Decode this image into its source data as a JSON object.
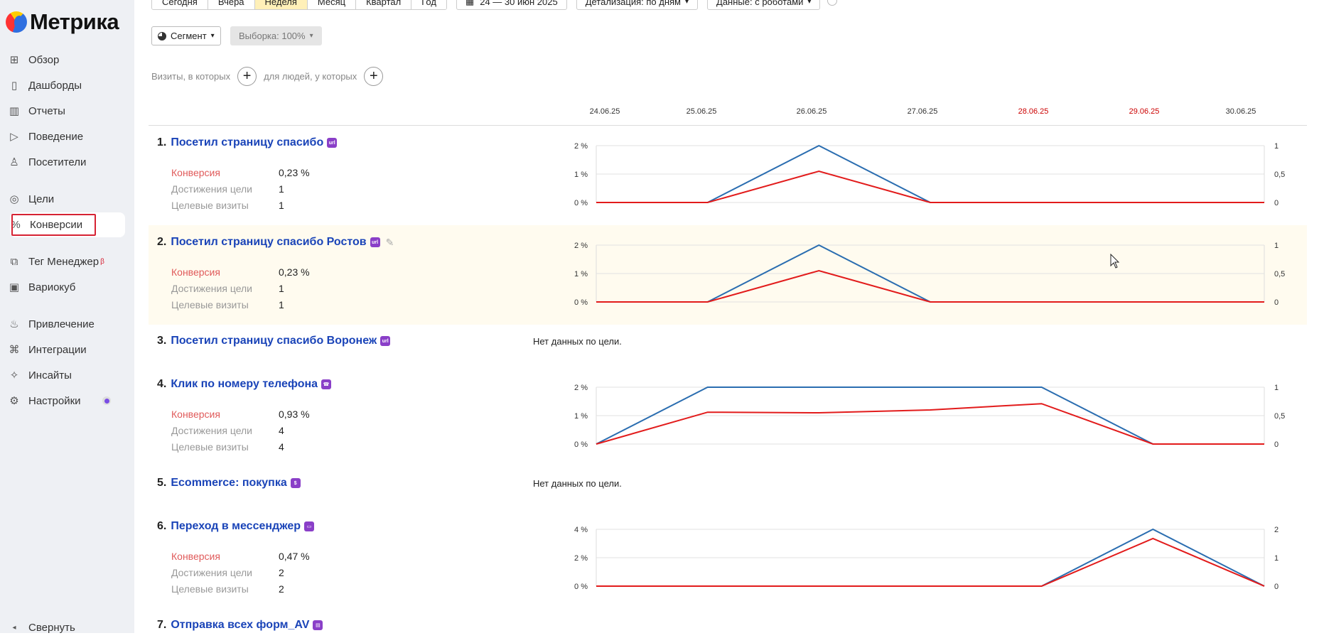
{
  "app": {
    "logo_text": "Метрика"
  },
  "sidebar": {
    "items": [
      {
        "label": "Обзор",
        "icon": "grid-icon"
      },
      {
        "label": "Дашборды",
        "icon": "dashboard-icon"
      },
      {
        "label": "Отчеты",
        "icon": "bar-chart-icon"
      },
      {
        "label": "Поведение",
        "icon": "play-icon"
      },
      {
        "label": "Посетители",
        "icon": "user-icon"
      },
      {
        "label": "Цели",
        "icon": "target-icon"
      },
      {
        "label": "Конверсии",
        "icon": "percent-icon",
        "active": true
      },
      {
        "label": "Тег Менеджер",
        "icon": "tag-manager-icon",
        "badge": "β"
      },
      {
        "label": "Вариокуб",
        "icon": "cube-icon"
      },
      {
        "label": "Привлечение",
        "icon": "flame-icon"
      },
      {
        "label": "Интеграции",
        "icon": "puzzle-icon"
      },
      {
        "label": "Инсайты",
        "icon": "sparkle-icon"
      },
      {
        "label": "Настройки",
        "icon": "gear-icon"
      }
    ],
    "collapse_label": "Свернуть"
  },
  "toolbar": {
    "periods": [
      "Сегодня",
      "Вчера",
      "Неделя",
      "Месяц",
      "Квартал",
      "Год"
    ],
    "selected_period": "Неделя",
    "date_range": "24 — 30 июн 2025",
    "detail": "Детализация: по дням",
    "data_mode": "Данные: с роботами",
    "segment_label": "Сегмент",
    "sample_label": "Выборка: 100%"
  },
  "filters": {
    "visits_label": "Визиты, в которых",
    "people_label": "для людей, у которых"
  },
  "dates": [
    "24.06.25",
    "25.06.25",
    "26.06.25",
    "27.06.25",
    "28.06.25",
    "29.06.25",
    "30.06.25"
  ],
  "weekend_dates": [
    "28.06.25",
    "29.06.25"
  ],
  "labels": {
    "conversion": "Конверсия",
    "achievements": "Достижения цели",
    "target_visits": "Целевые визиты",
    "no_data": "Нет данных по цели."
  },
  "colors": {
    "conversion_line": "#e21b1b",
    "visits_line": "#2a6db0",
    "link": "#1a44b8",
    "goal_icon": "#8a3fc8"
  },
  "goals": [
    {
      "num": "1.",
      "title": "Посетил страницу спасибо",
      "icon": "url-icon",
      "conversion": "0,23 %",
      "achievements": "1",
      "visits": "1",
      "chart": {
        "left_ticks": [
          "2 %",
          "1 %",
          "0 %"
        ],
        "right_ticks": [
          "1",
          "0,5",
          "0"
        ],
        "left_max": 2,
        "right_max": 1,
        "conversion_pct": [
          0,
          0,
          1.1,
          0,
          0,
          0,
          0
        ],
        "target_visits": [
          0,
          0,
          1,
          0,
          0,
          0,
          0
        ]
      }
    },
    {
      "num": "2.",
      "title": "Посетил страницу спасибо Ростов",
      "icon": "url-icon",
      "editable": true,
      "conversion": "0,23 %",
      "achievements": "1",
      "visits": "1",
      "chart": {
        "left_ticks": [
          "2 %",
          "1 %",
          "0 %"
        ],
        "right_ticks": [
          "1",
          "0,5",
          "0"
        ],
        "left_max": 2,
        "right_max": 1,
        "conversion_pct": [
          0,
          0,
          1.1,
          0,
          0,
          0,
          0
        ],
        "target_visits": [
          0,
          0,
          1,
          0,
          0,
          0,
          0
        ]
      }
    },
    {
      "num": "3.",
      "title": "Посетил страницу спасибо Воронеж",
      "icon": "url-icon",
      "no_data": true
    },
    {
      "num": "4.",
      "title": "Клик по номеру телефона",
      "icon": "phone-icon",
      "conversion": "0,93 %",
      "achievements": "4",
      "visits": "4",
      "chart": {
        "left_ticks": [
          "2 %",
          "1 %",
          "0 %"
        ],
        "right_ticks": [
          "1",
          "0,5",
          "0"
        ],
        "left_max": 2,
        "right_max": 1,
        "conversion_pct": [
          0,
          1.12,
          1.1,
          1.2,
          1.42,
          0,
          0
        ],
        "target_visits": [
          0,
          1,
          1,
          1,
          1,
          0,
          0
        ]
      }
    },
    {
      "num": "5.",
      "title": "Ecommerce: покупка",
      "icon": "ecommerce-icon",
      "no_data": true
    },
    {
      "num": "6.",
      "title": "Переход в мессенджер",
      "icon": "messenger-icon",
      "conversion": "0,47 %",
      "achievements": "2",
      "visits": "2",
      "chart": {
        "left_ticks": [
          "4 %",
          "2 %",
          "0 %"
        ],
        "right_ticks": [
          "2",
          "1",
          "0"
        ],
        "left_max": 4,
        "right_max": 2,
        "conversion_pct": [
          0,
          0,
          0,
          0,
          0,
          3.35,
          0
        ],
        "target_visits": [
          0,
          0,
          0,
          0,
          0,
          2,
          0
        ]
      }
    },
    {
      "num": "7.",
      "title": "Отправка всех форм_AV",
      "icon": "form-icon"
    }
  ]
}
